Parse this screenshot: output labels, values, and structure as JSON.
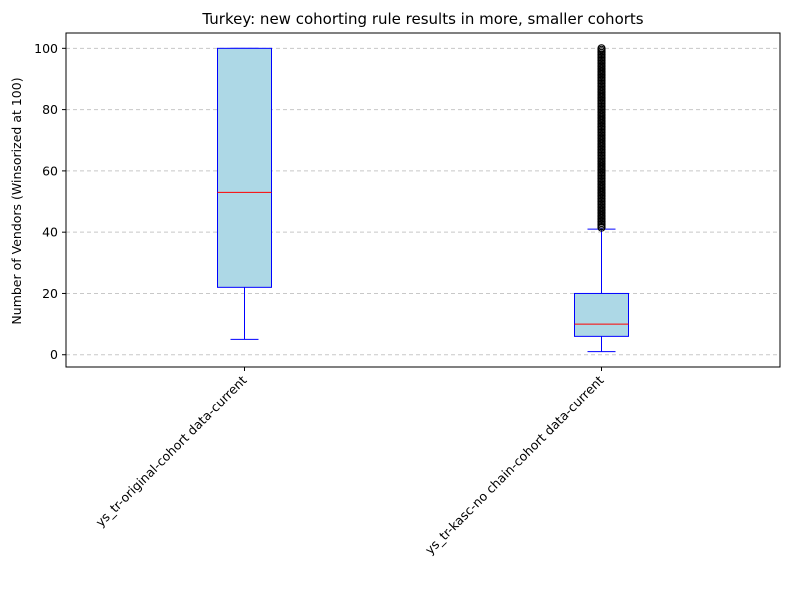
{
  "chart_data": {
    "type": "box",
    "title": "Turkey: new cohorting rule results in more, smaller cohorts",
    "xlabel": "",
    "ylabel": "Number of Vendors (Winsorized at 100)",
    "ylim": [
      -4,
      105
    ],
    "yticks": [
      0,
      20,
      40,
      60,
      80,
      100
    ],
    "grid": "y-dashed",
    "categories": [
      "ys_tr-original-cohort data-current",
      "ys_tr-kasc-no chain-cohort data-current"
    ],
    "boxes": [
      {
        "label": "ys_tr-original-cohort data-current",
        "whisker_low": 5,
        "q1": 22,
        "median": 53,
        "q3": 100,
        "whisker_high": 100,
        "outliers": []
      },
      {
        "label": "ys_tr-kasc-no chain-cohort data-current",
        "whisker_low": 1,
        "q1": 6,
        "median": 10,
        "q3": 20,
        "whisker_high": 41,
        "outliers": [
          41.5,
          42,
          42.5,
          43,
          43.5,
          44,
          44.5,
          45,
          45.5,
          46,
          46.5,
          47,
          47.5,
          48,
          48.5,
          49,
          49.5,
          50,
          50.5,
          51,
          51.5,
          52,
          52.5,
          53,
          53.5,
          54,
          54.5,
          55,
          55.5,
          56,
          56.5,
          57,
          57.5,
          58,
          58.5,
          59,
          59.5,
          60,
          60.5,
          61,
          61.5,
          62,
          62.5,
          63,
          63.5,
          64,
          64.5,
          65,
          65.5,
          66,
          66.5,
          67,
          67.5,
          68,
          68.5,
          69,
          69.5,
          70,
          70.5,
          71,
          71.5,
          72,
          72.5,
          73,
          73.5,
          74,
          74.5,
          75,
          75.5,
          76,
          76.5,
          77,
          77.5,
          78,
          78.5,
          79,
          79.5,
          80,
          80.5,
          81,
          81.5,
          82,
          82.5,
          83,
          83.5,
          84,
          84.5,
          85,
          85.5,
          86,
          86.5,
          87,
          87.5,
          88,
          88.5,
          89,
          89.5,
          90,
          90.5,
          91,
          91.5,
          92,
          92.5,
          93,
          93.5,
          94,
          94.5,
          95,
          95.5,
          96,
          96.5,
          97,
          97.5,
          98,
          98.5,
          99,
          99.5,
          100
        ]
      }
    ],
    "colors": {
      "box_fill": "#add8e6",
      "box_edge": "#0000ff",
      "median": "#ff0000",
      "grid": "#c8c8c8",
      "outlier_edge": "#000000"
    }
  }
}
